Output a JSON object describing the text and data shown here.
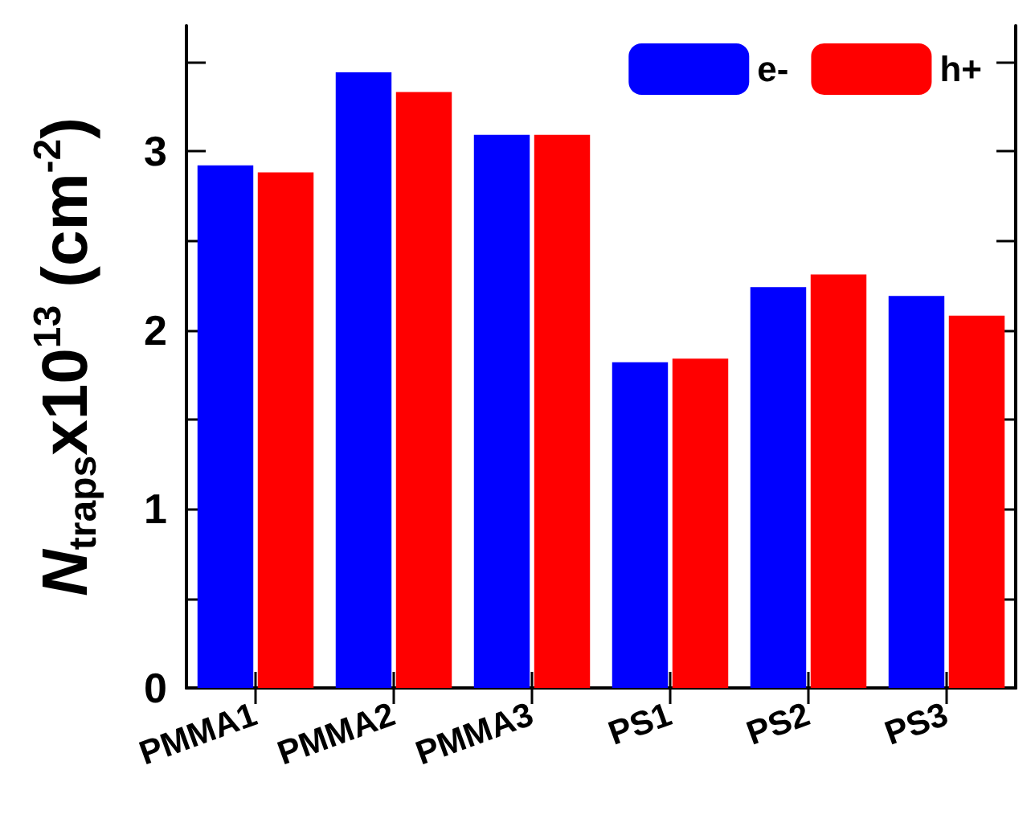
{
  "chart_data": {
    "type": "bar",
    "ylabel": "N$_{traps}$x10$^{13}$ (cm$^{-2}$)",
    "categories": [
      "PMMA1",
      "PMMA2",
      "PMMA3",
      "PS1",
      "PS2",
      "PS3"
    ],
    "series": [
      {
        "name": "e-",
        "color": "#0000ff",
        "values": [
          2.92,
          3.44,
          3.09,
          1.82,
          2.24,
          2.19
        ]
      },
      {
        "name": "h+",
        "color": "#ff0000",
        "values": [
          2.88,
          3.33,
          3.09,
          1.84,
          2.31,
          2.08
        ]
      }
    ],
    "ylim": [
      0,
      3.7
    ],
    "yticks": [
      0,
      {
        "value": 0.5,
        "label": null
      },
      1,
      {
        "value": 1.5,
        "label": null
      },
      2,
      {
        "value": 2.5,
        "label": null
      },
      3,
      {
        "value": 3.5,
        "label": null
      }
    ],
    "legend": "top right",
    "grid": false
  }
}
